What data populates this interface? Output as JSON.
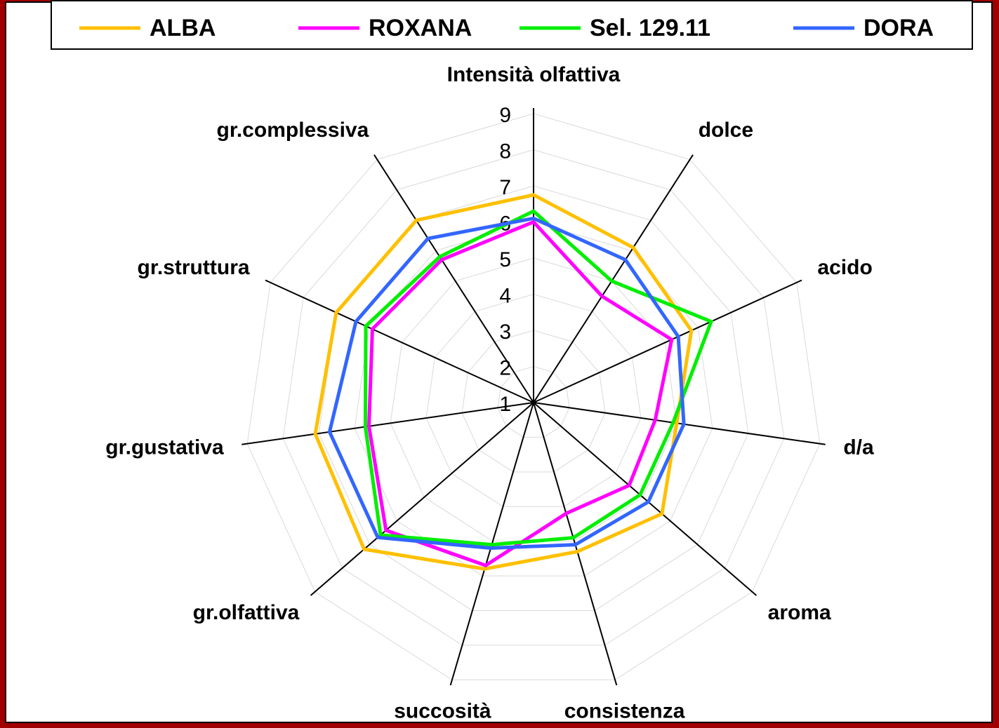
{
  "chart_data": {
    "type": "radar",
    "categories": [
      "Intensità olfattiva",
      "dolce",
      "acido",
      "d/a",
      "aroma",
      "consistenza",
      "succosità",
      "gr.olfattiva",
      "gr.gustativa",
      "gr.struttura",
      "gr.complessiva"
    ],
    "series": [
      {
        "name": "ALBA",
        "color": "#ffc000",
        "values": [
          6.75,
          6.1,
          5.8,
          5.0,
          5.7,
          5.3,
          5.8,
          7.2,
          7.1,
          7.0,
          7.0
        ]
      },
      {
        "name": "ROXANA",
        "color": "#ff00ff",
        "values": [
          6.0,
          4.5,
          5.2,
          4.4,
          4.5,
          4.2,
          5.7,
          6.4,
          5.6,
          5.9,
          5.7
        ]
      },
      {
        "name": "Sel. 129.11",
        "color": "#00ee00",
        "values": [
          6.3,
          5.0,
          6.4,
          4.9,
          4.9,
          4.9,
          5.1,
          6.6,
          5.7,
          6.1,
          5.8
        ]
      },
      {
        "name": "DORA",
        "color": "#3366ff",
        "values": [
          6.1,
          5.7,
          5.4,
          5.2,
          5.2,
          5.1,
          5.2,
          6.7,
          6.7,
          6.4,
          6.4
        ]
      }
    ],
    "ylim": [
      1,
      9
    ],
    "yticks": [
      1,
      2,
      3,
      4,
      5,
      6,
      7,
      8,
      9
    ],
    "grid": true,
    "legend": "top"
  }
}
